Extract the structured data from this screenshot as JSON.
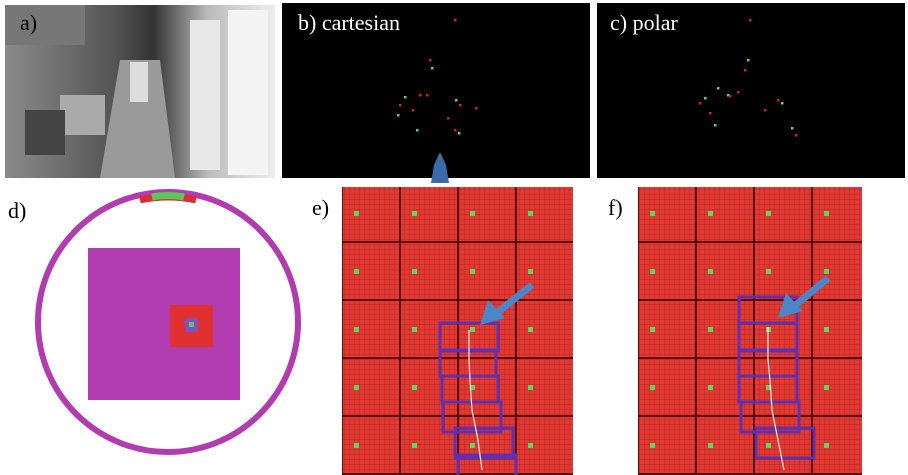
{
  "panels": [
    "a)",
    "b) cartesian",
    "c) polar",
    "d)",
    "e)",
    "f)"
  ]
}
